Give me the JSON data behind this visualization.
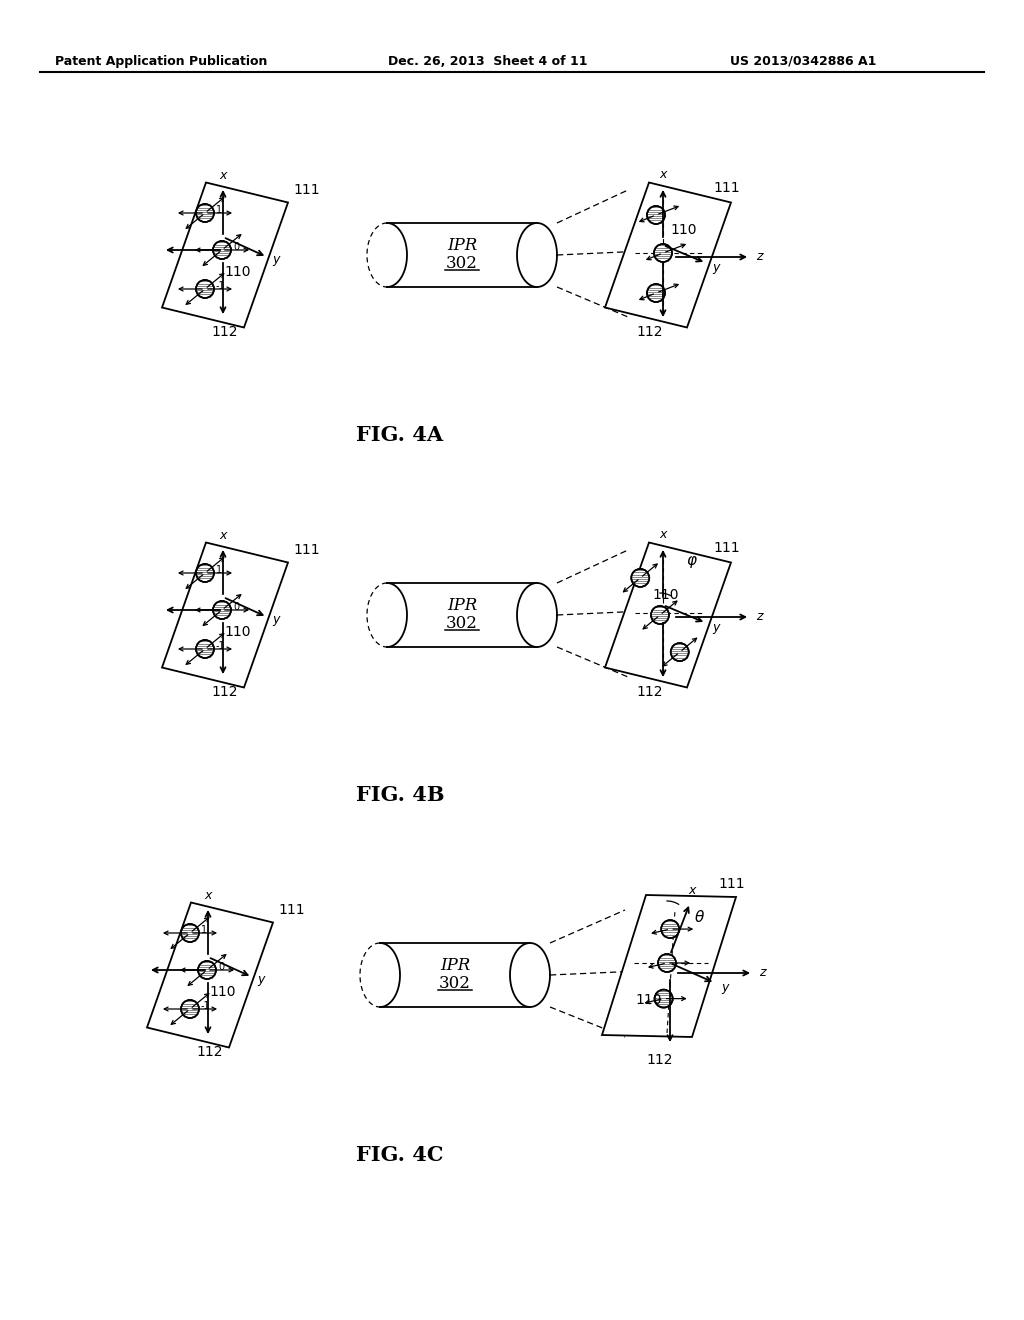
{
  "header_left": "Patent Application Publication",
  "header_mid": "Dec. 26, 2013  Sheet 4 of 11",
  "header_right": "US 2013/0342886 A1",
  "fig_labels": [
    "FIG. 4A",
    "FIG. 4B",
    "FIG. 4C"
  ],
  "ipr_label": "IPR",
  "ipr_num": "302",
  "ref_111": "111",
  "ref_112": "112",
  "ref_110": "110",
  "background": "#ffffff"
}
